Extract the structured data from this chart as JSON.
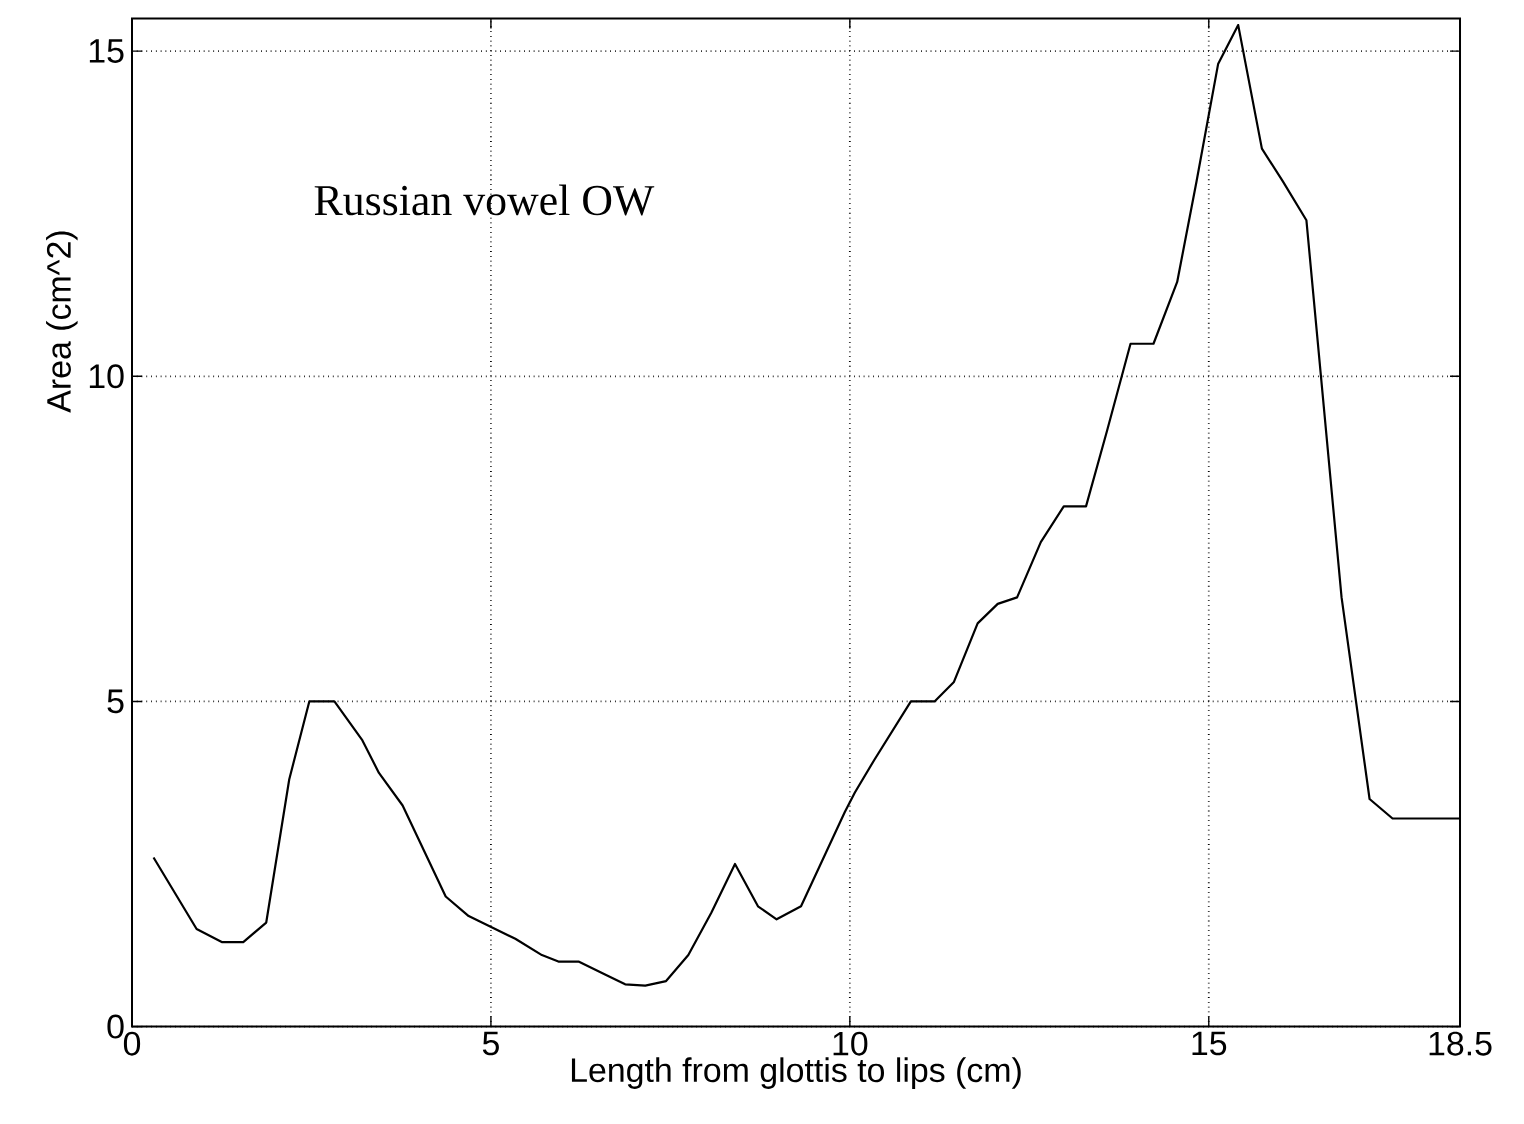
{
  "chart_data": {
    "type": "line",
    "xlabel": "Length from glottis to lips (cm)",
    "ylabel": "Area (cm^2)",
    "annotations": [
      "Russian vowel OW"
    ],
    "x": [
      0.3,
      0.9,
      1.25,
      1.55,
      1.87,
      2.19,
      2.47,
      2.82,
      3.21,
      3.44,
      3.77,
      4.37,
      4.69,
      5.06,
      5.34,
      5.71,
      5.94,
      6.22,
      6.59,
      6.87,
      7.15,
      7.44,
      7.75,
      8.07,
      8.4,
      8.72,
      8.98,
      9.32,
      9.93,
      10.07,
      10.34,
      10.85,
      11.18,
      11.45,
      11.78,
      12.06,
      12.33,
      12.66,
      12.98,
      13.29,
      13.58,
      13.91,
      14.23,
      14.56,
      14.83,
      15.13,
      15.41,
      15.74,
      16.03,
      16.36,
      16.85,
      17.24,
      17.56,
      18.5
    ],
    "values": [
      2.6,
      1.5,
      1.3,
      1.3,
      1.6,
      3.8,
      5.0,
      5.0,
      4.4,
      3.9,
      3.4,
      2.0,
      1.7,
      1.5,
      1.35,
      1.1,
      1.0,
      1.0,
      0.8,
      0.65,
      0.63,
      0.7,
      1.1,
      1.75,
      2.5,
      1.85,
      1.65,
      1.85,
      3.3,
      3.6,
      4.1,
      5.0,
      5.0,
      5.3,
      6.2,
      6.5,
      6.6,
      7.45,
      8.0,
      8.0,
      9.15,
      10.5,
      10.5,
      11.45,
      13.0,
      14.8,
      15.4,
      13.5,
      13.0,
      12.4,
      6.6,
      3.5,
      3.2,
      3.2
    ],
    "color": "#000000",
    "line_style": "solid",
    "xlim": [
      0,
      18.5
    ],
    "ylim": [
      0,
      15.5
    ],
    "xticks": [
      0,
      5,
      10,
      15,
      18.5
    ],
    "yticks": [
      0,
      5,
      10,
      15
    ],
    "grid": true
  }
}
